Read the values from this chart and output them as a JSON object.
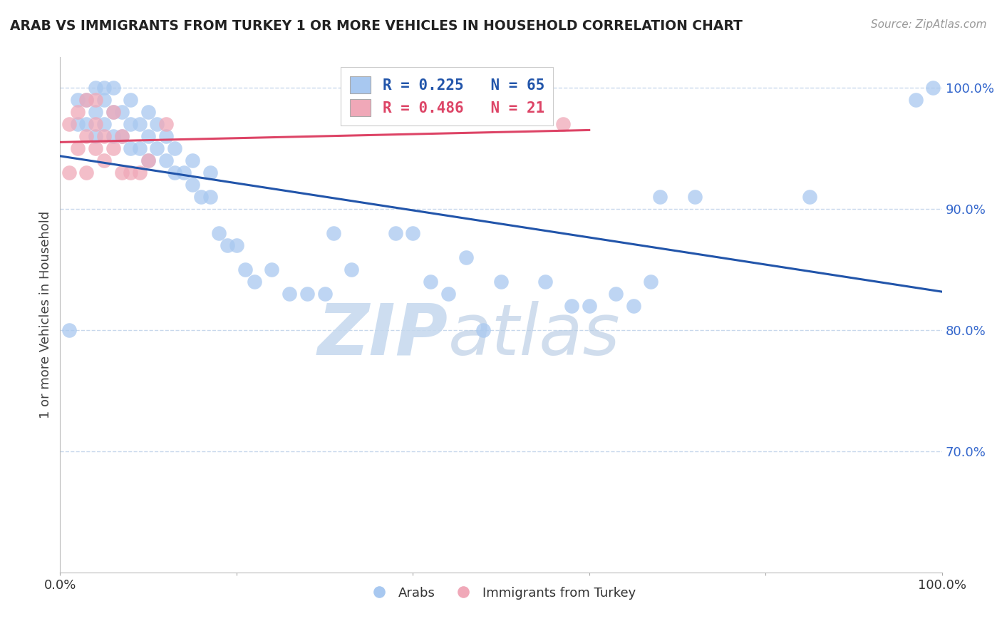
{
  "title": "ARAB VS IMMIGRANTS FROM TURKEY 1 OR MORE VEHICLES IN HOUSEHOLD CORRELATION CHART",
  "source": "Source: ZipAtlas.com",
  "ylabel": "1 or more Vehicles in Household",
  "xlim": [
    0,
    1.0
  ],
  "ylim": [
    0.6,
    1.025
  ],
  "yticks": [
    0.7,
    0.8,
    0.9,
    1.0
  ],
  "ytick_labels": [
    "70.0%",
    "80.0%",
    "90.0%",
    "100.0%"
  ],
  "xticks": [
    0.0,
    0.2,
    0.4,
    0.6,
    0.8,
    1.0
  ],
  "xtick_labels": [
    "0.0%",
    "",
    "",
    "",
    "",
    "100.0%"
  ],
  "arab_color": "#a8c8f0",
  "turk_color": "#f0a8b8",
  "arab_line_color": "#2255aa",
  "turk_line_color": "#dd4466",
  "background_color": "#ffffff",
  "grid_color": "#c8d8ec",
  "arab_x": [
    0.01,
    0.02,
    0.02,
    0.03,
    0.03,
    0.04,
    0.04,
    0.04,
    0.05,
    0.05,
    0.05,
    0.06,
    0.06,
    0.06,
    0.07,
    0.07,
    0.08,
    0.08,
    0.08,
    0.09,
    0.09,
    0.1,
    0.1,
    0.1,
    0.11,
    0.11,
    0.12,
    0.12,
    0.13,
    0.13,
    0.14,
    0.15,
    0.15,
    0.16,
    0.17,
    0.17,
    0.18,
    0.19,
    0.2,
    0.21,
    0.22,
    0.24,
    0.26,
    0.28,
    0.3,
    0.31,
    0.33,
    0.38,
    0.4,
    0.42,
    0.44,
    0.46,
    0.48,
    0.5,
    0.55,
    0.58,
    0.6,
    0.63,
    0.65,
    0.67,
    0.68,
    0.72,
    0.85,
    0.97,
    0.99
  ],
  "arab_y": [
    0.8,
    0.97,
    0.99,
    0.97,
    0.99,
    0.96,
    0.98,
    1.0,
    0.97,
    0.99,
    1.0,
    0.96,
    0.98,
    1.0,
    0.96,
    0.98,
    0.95,
    0.97,
    0.99,
    0.95,
    0.97,
    0.94,
    0.96,
    0.98,
    0.95,
    0.97,
    0.94,
    0.96,
    0.93,
    0.95,
    0.93,
    0.92,
    0.94,
    0.91,
    0.91,
    0.93,
    0.88,
    0.87,
    0.87,
    0.85,
    0.84,
    0.85,
    0.83,
    0.83,
    0.83,
    0.88,
    0.85,
    0.88,
    0.88,
    0.84,
    0.83,
    0.86,
    0.8,
    0.84,
    0.84,
    0.82,
    0.82,
    0.83,
    0.82,
    0.84,
    0.91,
    0.91,
    0.91,
    0.99,
    1.0
  ],
  "turk_x": [
    0.01,
    0.01,
    0.02,
    0.02,
    0.03,
    0.03,
    0.03,
    0.04,
    0.04,
    0.04,
    0.05,
    0.05,
    0.06,
    0.06,
    0.07,
    0.07,
    0.08,
    0.09,
    0.1,
    0.12,
    0.57
  ],
  "turk_y": [
    0.93,
    0.97,
    0.95,
    0.98,
    0.93,
    0.96,
    0.99,
    0.95,
    0.97,
    0.99,
    0.94,
    0.96,
    0.95,
    0.98,
    0.93,
    0.96,
    0.93,
    0.93,
    0.94,
    0.97,
    0.97
  ],
  "watermark_zip": "ZIP",
  "watermark_atlas": "atlas",
  "legend_entries": [
    "R = 0.225   N = 65",
    "R = 0.486   N = 21"
  ]
}
